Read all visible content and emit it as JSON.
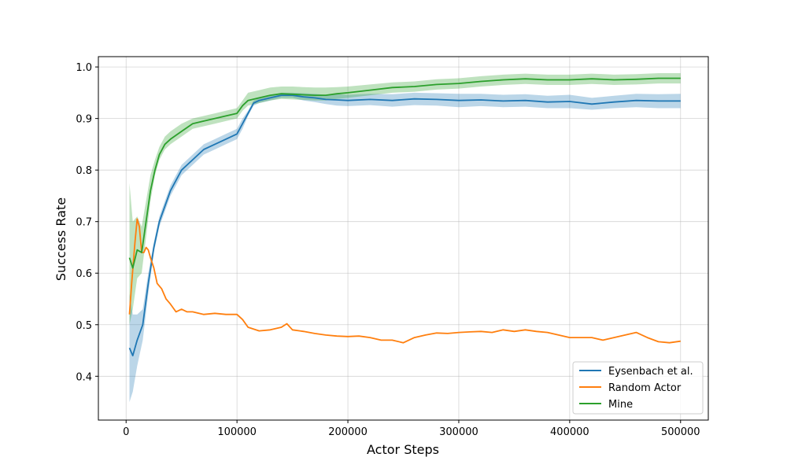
{
  "chart_data": {
    "type": "line",
    "xlabel": "Actor Steps",
    "ylabel": "Success Rate",
    "xlim": [
      -25000,
      525000
    ],
    "ylim": [
      0.315,
      1.02
    ],
    "x_ticks": [
      0,
      100000,
      200000,
      300000,
      400000,
      500000
    ],
    "x_tick_labels": [
      "0",
      "100000",
      "200000",
      "300000",
      "400000",
      "500000"
    ],
    "y_ticks": [
      0.4,
      0.5,
      0.6,
      0.7,
      0.8,
      0.9,
      1.0
    ],
    "y_tick_labels": [
      "0.4",
      "0.5",
      "0.6",
      "0.7",
      "0.8",
      "0.9",
      "1.0"
    ],
    "grid": true,
    "legend_position": "lower-right",
    "series": [
      {
        "name": "Eysenbach et al.",
        "color": "#1f77b4",
        "shaded_band": true,
        "x": [
          3000,
          6000,
          10000,
          15000,
          20000,
          25000,
          30000,
          40000,
          50000,
          60000,
          70000,
          80000,
          90000,
          100000,
          105000,
          110000,
          115000,
          120000,
          130000,
          140000,
          150000,
          160000,
          170000,
          180000,
          190000,
          200000,
          220000,
          240000,
          260000,
          280000,
          300000,
          320000,
          340000,
          360000,
          380000,
          400000,
          420000,
          440000,
          460000,
          480000,
          500000
        ],
        "y": [
          0.455,
          0.44,
          0.47,
          0.5,
          0.58,
          0.65,
          0.7,
          0.76,
          0.8,
          0.82,
          0.84,
          0.85,
          0.86,
          0.87,
          0.89,
          0.91,
          0.93,
          0.935,
          0.94,
          0.945,
          0.945,
          0.942,
          0.94,
          0.937,
          0.936,
          0.935,
          0.937,
          0.935,
          0.938,
          0.937,
          0.935,
          0.936,
          0.934,
          0.935,
          0.932,
          0.933,
          0.928,
          0.932,
          0.935,
          0.934,
          0.934
        ],
        "lower": [
          0.35,
          0.37,
          0.42,
          0.47,
          0.56,
          0.64,
          0.69,
          0.75,
          0.79,
          0.81,
          0.83,
          0.84,
          0.85,
          0.86,
          0.88,
          0.905,
          0.925,
          0.93,
          0.935,
          0.94,
          0.94,
          0.935,
          0.932,
          0.928,
          0.925,
          0.924,
          0.926,
          0.923,
          0.926,
          0.925,
          0.922,
          0.924,
          0.922,
          0.923,
          0.92,
          0.92,
          0.917,
          0.92,
          0.922,
          0.92,
          0.92
        ],
        "upper": [
          0.56,
          0.52,
          0.52,
          0.53,
          0.6,
          0.66,
          0.71,
          0.77,
          0.81,
          0.83,
          0.85,
          0.86,
          0.87,
          0.88,
          0.9,
          0.915,
          0.935,
          0.94,
          0.945,
          0.95,
          0.95,
          0.949,
          0.948,
          0.946,
          0.947,
          0.946,
          0.948,
          0.947,
          0.95,
          0.949,
          0.948,
          0.948,
          0.946,
          0.947,
          0.944,
          0.946,
          0.94,
          0.944,
          0.948,
          0.947,
          0.948
        ]
      },
      {
        "name": "Random Actor",
        "color": "#ff7f0e",
        "shaded_band": false,
        "x": [
          3000,
          5000,
          8000,
          10000,
          12000,
          14000,
          16000,
          18000,
          20000,
          22000,
          25000,
          28000,
          32000,
          36000,
          40000,
          45000,
          50000,
          55000,
          60000,
          70000,
          80000,
          90000,
          100000,
          105000,
          110000,
          120000,
          130000,
          140000,
          145000,
          150000,
          160000,
          170000,
          180000,
          190000,
          200000,
          210000,
          220000,
          230000,
          240000,
          250000,
          260000,
          270000,
          280000,
          290000,
          300000,
          310000,
          320000,
          330000,
          340000,
          350000,
          360000,
          370000,
          380000,
          390000,
          400000,
          410000,
          420000,
          430000,
          440000,
          450000,
          460000,
          470000,
          480000,
          490000,
          500000
        ],
        "y": [
          0.52,
          0.58,
          0.66,
          0.705,
          0.69,
          0.64,
          0.64,
          0.65,
          0.645,
          0.63,
          0.61,
          0.58,
          0.57,
          0.55,
          0.54,
          0.525,
          0.53,
          0.525,
          0.525,
          0.52,
          0.522,
          0.52,
          0.52,
          0.51,
          0.495,
          0.488,
          0.49,
          0.495,
          0.502,
          0.49,
          0.487,
          0.483,
          0.48,
          0.478,
          0.477,
          0.478,
          0.475,
          0.47,
          0.47,
          0.465,
          0.475,
          0.48,
          0.484,
          0.483,
          0.485,
          0.486,
          0.487,
          0.485,
          0.49,
          0.487,
          0.49,
          0.487,
          0.485,
          0.48,
          0.475,
          0.475,
          0.475,
          0.47,
          0.475,
          0.48,
          0.485,
          0.475,
          0.467,
          0.465,
          0.468
        ]
      },
      {
        "name": "Mine",
        "color": "#2ca02c",
        "shaded_band": true,
        "x": [
          3000,
          6000,
          10000,
          14000,
          18000,
          22000,
          26000,
          30000,
          35000,
          40000,
          50000,
          60000,
          70000,
          80000,
          90000,
          100000,
          105000,
          110000,
          120000,
          130000,
          140000,
          150000,
          160000,
          170000,
          180000,
          190000,
          200000,
          220000,
          240000,
          260000,
          280000,
          300000,
          320000,
          340000,
          360000,
          380000,
          400000,
          420000,
          440000,
          460000,
          480000,
          500000
        ],
        "y": [
          0.63,
          0.61,
          0.645,
          0.64,
          0.7,
          0.76,
          0.8,
          0.83,
          0.85,
          0.86,
          0.875,
          0.89,
          0.895,
          0.9,
          0.905,
          0.91,
          0.925,
          0.935,
          0.94,
          0.945,
          0.948,
          0.947,
          0.946,
          0.945,
          0.945,
          0.948,
          0.95,
          0.955,
          0.96,
          0.962,
          0.966,
          0.968,
          0.972,
          0.975,
          0.977,
          0.975,
          0.975,
          0.977,
          0.975,
          0.976,
          0.978,
          0.978
        ],
        "lower": [
          0.5,
          0.53,
          0.59,
          0.6,
          0.67,
          0.74,
          0.79,
          0.82,
          0.84,
          0.85,
          0.865,
          0.88,
          0.885,
          0.89,
          0.895,
          0.9,
          0.915,
          0.925,
          0.93,
          0.935,
          0.938,
          0.937,
          0.936,
          0.935,
          0.935,
          0.938,
          0.94,
          0.945,
          0.95,
          0.952,
          0.956,
          0.958,
          0.962,
          0.965,
          0.967,
          0.965,
          0.965,
          0.967,
          0.965,
          0.966,
          0.968,
          0.968
        ],
        "upper": [
          0.775,
          0.7,
          0.71,
          0.69,
          0.74,
          0.79,
          0.82,
          0.845,
          0.865,
          0.875,
          0.89,
          0.9,
          0.905,
          0.91,
          0.915,
          0.92,
          0.935,
          0.95,
          0.955,
          0.96,
          0.962,
          0.962,
          0.961,
          0.96,
          0.96,
          0.961,
          0.962,
          0.966,
          0.97,
          0.972,
          0.976,
          0.978,
          0.982,
          0.985,
          0.987,
          0.985,
          0.985,
          0.987,
          0.985,
          0.986,
          0.988,
          0.988
        ]
      }
    ]
  }
}
